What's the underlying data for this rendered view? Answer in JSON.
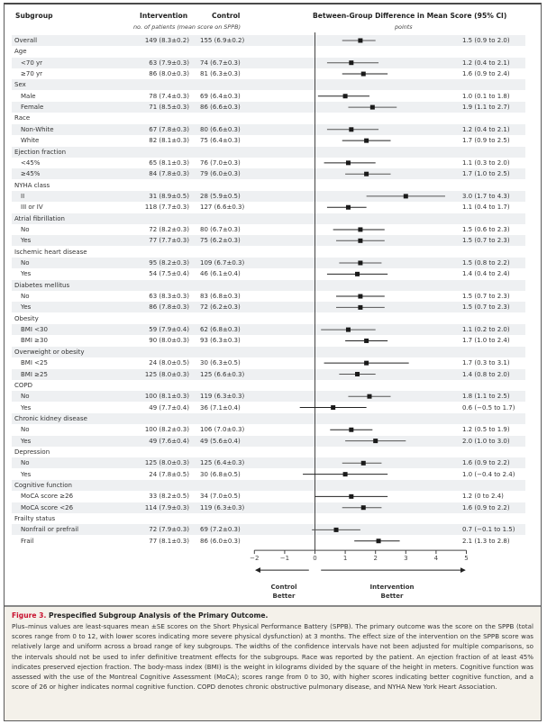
{
  "headers": {
    "subgroup": "Subgroup",
    "intervention": "Intervention",
    "control": "Control",
    "counts_note": "no. of patients (mean score on SPPB)",
    "difference": "Between-Group Difference in Mean Score (95% CI)",
    "units": "points"
  },
  "chart_data": {
    "type": "forest",
    "title": "Prespecified Subgroup Analysis of the Primary Outcome",
    "xlabel": "Between-Group Difference in Mean Score (95% CI), points",
    "xlim": [
      -2,
      5
    ],
    "xticks": [
      "−2",
      "−1",
      "0",
      "1",
      "2",
      "3",
      "4",
      "5"
    ],
    "reference_line": 0,
    "direction_labels": {
      "left": "Control Better",
      "right": "Intervention Better"
    },
    "rows": [
      {
        "label": "Overall",
        "kind": "item",
        "indent": false,
        "intervention": "149 (8.3±0.2)",
        "control": "155 (6.9±0.2)",
        "est": 1.5,
        "lo": 0.9,
        "hi": 2.0,
        "text": "1.5 (0.9 to 2.0)"
      },
      {
        "label": "Age",
        "kind": "group"
      },
      {
        "label": "<70 yr",
        "kind": "item",
        "indent": true,
        "intervention": "63 (7.9±0.3)",
        "control": "74 (6.7±0.3)",
        "est": 1.2,
        "lo": 0.4,
        "hi": 2.1,
        "text": "1.2 (0.4 to 2.1)"
      },
      {
        "label": "≥70 yr",
        "kind": "item",
        "indent": true,
        "intervention": "86 (8.0±0.3)",
        "control": "81 (6.3±0.3)",
        "est": 1.6,
        "lo": 0.9,
        "hi": 2.4,
        "text": "1.6 (0.9 to 2.4)"
      },
      {
        "label": "Sex",
        "kind": "group"
      },
      {
        "label": "Male",
        "kind": "item",
        "indent": true,
        "intervention": "78 (7.4±0.3)",
        "control": "69 (6.4±0.3)",
        "est": 1.0,
        "lo": 0.1,
        "hi": 1.8,
        "text": "1.0 (0.1 to 1.8)"
      },
      {
        "label": "Female",
        "kind": "item",
        "indent": true,
        "intervention": "71 (8.5±0.3)",
        "control": "86 (6.6±0.3)",
        "est": 1.9,
        "lo": 1.1,
        "hi": 2.7,
        "text": "1.9 (1.1 to 2.7)"
      },
      {
        "label": "Race",
        "kind": "group"
      },
      {
        "label": "Non-White",
        "kind": "item",
        "indent": true,
        "intervention": "67 (7.8±0.3)",
        "control": "80 (6.6±0.3)",
        "est": 1.2,
        "lo": 0.4,
        "hi": 2.1,
        "text": "1.2 (0.4 to 2.1)"
      },
      {
        "label": "White",
        "kind": "item",
        "indent": true,
        "intervention": "82 (8.1±0.3)",
        "control": "75 (6.4±0.3)",
        "est": 1.7,
        "lo": 0.9,
        "hi": 2.5,
        "text": "1.7 (0.9 to 2.5)"
      },
      {
        "label": "Ejection fraction",
        "kind": "group"
      },
      {
        "label": "<45%",
        "kind": "item",
        "indent": true,
        "intervention": "65 (8.1±0.3)",
        "control": "76 (7.0±0.3)",
        "est": 1.1,
        "lo": 0.3,
        "hi": 2.0,
        "text": "1.1 (0.3 to 2.0)"
      },
      {
        "label": "≥45%",
        "kind": "item",
        "indent": true,
        "intervention": "84 (7.8±0.3)",
        "control": "79 (6.0±0.3)",
        "est": 1.7,
        "lo": 1.0,
        "hi": 2.5,
        "text": "1.7 (1.0 to 2.5)"
      },
      {
        "label": "NYHA class",
        "kind": "group"
      },
      {
        "label": "II",
        "kind": "item",
        "indent": true,
        "intervention": "31 (8.9±0.5)",
        "control": "28 (5.9±0.5)",
        "est": 3.0,
        "lo": 1.7,
        "hi": 4.3,
        "text": "3.0 (1.7 to 4.3)"
      },
      {
        "label": "III or IV",
        "kind": "item",
        "indent": true,
        "intervention": "118 (7.7±0.3)",
        "control": "127 (6.6±0.3)",
        "est": 1.1,
        "lo": 0.4,
        "hi": 1.7,
        "text": "1.1 (0.4 to 1.7)"
      },
      {
        "label": "Atrial fibrillation",
        "kind": "group"
      },
      {
        "label": "No",
        "kind": "item",
        "indent": true,
        "intervention": "72 (8.2±0.3)",
        "control": "80 (6.7±0.3)",
        "est": 1.5,
        "lo": 0.6,
        "hi": 2.3,
        "text": "1.5 (0.6 to 2.3)"
      },
      {
        "label": "Yes",
        "kind": "item",
        "indent": true,
        "intervention": "77 (7.7±0.3)",
        "control": "75 (6.2±0.3)",
        "est": 1.5,
        "lo": 0.7,
        "hi": 2.3,
        "text": "1.5 (0.7 to 2.3)"
      },
      {
        "label": "Ischemic heart disease",
        "kind": "group"
      },
      {
        "label": "No",
        "kind": "item",
        "indent": true,
        "intervention": "95 (8.2±0.3)",
        "control": "109 (6.7±0.3)",
        "est": 1.5,
        "lo": 0.8,
        "hi": 2.2,
        "text": "1.5 (0.8 to 2.2)"
      },
      {
        "label": "Yes",
        "kind": "item",
        "indent": true,
        "intervention": "54 (7.5±0.4)",
        "control": "46 (6.1±0.4)",
        "est": 1.4,
        "lo": 0.4,
        "hi": 2.4,
        "text": "1.4 (0.4 to 2.4)"
      },
      {
        "label": "Diabetes mellitus",
        "kind": "group"
      },
      {
        "label": "No",
        "kind": "item",
        "indent": true,
        "intervention": "63 (8.3±0.3)",
        "control": "83 (6.8±0.3)",
        "est": 1.5,
        "lo": 0.7,
        "hi": 2.3,
        "text": "1.5 (0.7 to 2.3)"
      },
      {
        "label": "Yes",
        "kind": "item",
        "indent": true,
        "intervention": "86 (7.8±0.3)",
        "control": "72 (6.2±0.3)",
        "est": 1.5,
        "lo": 0.7,
        "hi": 2.3,
        "text": "1.5 (0.7 to 2.3)"
      },
      {
        "label": "Obesity",
        "kind": "group"
      },
      {
        "label": "BMI <30",
        "kind": "item",
        "indent": true,
        "intervention": "59 (7.9±0.4)",
        "control": "62 (6.8±0.3)",
        "est": 1.1,
        "lo": 0.2,
        "hi": 2.0,
        "text": "1.1 (0.2 to 2.0)"
      },
      {
        "label": "BMI ≥30",
        "kind": "item",
        "indent": true,
        "intervention": "90 (8.0±0.3)",
        "control": "93 (6.3±0.3)",
        "est": 1.7,
        "lo": 1.0,
        "hi": 2.4,
        "text": "1.7 (1.0 to 2.4)"
      },
      {
        "label": "Overweight or obesity",
        "kind": "group"
      },
      {
        "label": "BMI <25",
        "kind": "item",
        "indent": true,
        "intervention": "24 (8.0±0.5)",
        "control": "30 (6.3±0.5)",
        "est": 1.7,
        "lo": 0.3,
        "hi": 3.1,
        "text": "1.7 (0.3 to 3.1)"
      },
      {
        "label": "BMI ≥25",
        "kind": "item",
        "indent": true,
        "intervention": "125 (8.0±0.3)",
        "control": "125 (6.6±0.3)",
        "est": 1.4,
        "lo": 0.8,
        "hi": 2.0,
        "text": "1.4 (0.8 to 2.0)"
      },
      {
        "label": "COPD",
        "kind": "group"
      },
      {
        "label": "No",
        "kind": "item",
        "indent": true,
        "intervention": "100 (8.1±0.3)",
        "control": "119 (6.3±0.3)",
        "est": 1.8,
        "lo": 1.1,
        "hi": 2.5,
        "text": "1.8 (1.1 to 2.5)"
      },
      {
        "label": "Yes",
        "kind": "item",
        "indent": true,
        "intervention": "49 (7.7±0.4)",
        "control": "36 (7.1±0.4)",
        "est": 0.6,
        "lo": -0.5,
        "hi": 1.7,
        "text": "0.6 (−0.5 to 1.7)"
      },
      {
        "label": "Chronic kidney disease",
        "kind": "group"
      },
      {
        "label": "No",
        "kind": "item",
        "indent": true,
        "intervention": "100 (8.2±0.3)",
        "control": "106 (7.0±0.3)",
        "est": 1.2,
        "lo": 0.5,
        "hi": 1.9,
        "text": "1.2 (0.5 to 1.9)"
      },
      {
        "label": "Yes",
        "kind": "item",
        "indent": true,
        "intervention": "49 (7.6±0.4)",
        "control": "49 (5.6±0.4)",
        "est": 2.0,
        "lo": 1.0,
        "hi": 3.0,
        "text": "2.0 (1.0 to 3.0)"
      },
      {
        "label": "Depression",
        "kind": "group"
      },
      {
        "label": "No",
        "kind": "item",
        "indent": true,
        "intervention": "125 (8.0±0.3)",
        "control": "125 (6.4±0.3)",
        "est": 1.6,
        "lo": 0.9,
        "hi": 2.2,
        "text": "1.6 (0.9 to 2.2)"
      },
      {
        "label": "Yes",
        "kind": "item",
        "indent": true,
        "intervention": "24 (7.8±0.5)",
        "control": "30 (6.8±0.5)",
        "est": 1.0,
        "lo": -0.4,
        "hi": 2.4,
        "text": "1.0 (−0.4 to 2.4)"
      },
      {
        "label": "Cognitive function",
        "kind": "group"
      },
      {
        "label": "MoCA score ≥26",
        "kind": "item",
        "indent": true,
        "intervention": "33 (8.2±0.5)",
        "control": "34 (7.0±0.5)",
        "est": 1.2,
        "lo": 0.0,
        "hi": 2.4,
        "text": "1.2 (0 to 2.4)"
      },
      {
        "label": "MoCA score <26",
        "kind": "item",
        "indent": true,
        "intervention": "114 (7.9±0.3)",
        "control": "119 (6.3±0.3)",
        "est": 1.6,
        "lo": 0.9,
        "hi": 2.2,
        "text": "1.6 (0.9 to 2.2)"
      },
      {
        "label": "Frailty status",
        "kind": "group"
      },
      {
        "label": "Nonfrail or prefrail",
        "kind": "item",
        "indent": true,
        "intervention": "72 (7.9±0.3)",
        "control": "69 (7.2±0.3)",
        "est": 0.7,
        "lo": -0.1,
        "hi": 1.5,
        "text": "0.7 (−0.1 to 1.5)"
      },
      {
        "label": "Frail",
        "kind": "item",
        "indent": true,
        "intervention": "77 (8.1±0.3)",
        "control": "86 (6.0±0.3)",
        "est": 2.1,
        "lo": 1.3,
        "hi": 2.8,
        "text": "2.1 (1.3 to 2.8)"
      }
    ]
  },
  "direction": {
    "control": "Control\nBetter",
    "intervention": "Intervention\nBetter"
  },
  "caption": {
    "figure_label": "Figure 3.",
    "title": "Prespecified Subgroup Analysis of the Primary Outcome.",
    "body": "Plus–minus values are least-squares mean ±SE scores on the Short Physical Performance Battery (SPPB). The primary outcome was the score on the SPPB (total scores range from 0 to 12, with lower scores indicating more severe physical dysfunction) at 3 months. The effect size of the intervention on the SPPB score was relatively large and uniform across a broad range of key subgroups. The widths of the confidence intervals have not been adjusted for multiple comparisons, so the intervals should not be used to infer definitive treatment effects for the subgroups. Race was reported by the patient. An ejection fraction of at least 45% indicates preserved ejection fraction. The body-mass index (BMI) is the weight in kilograms divided by the square of the height in meters. Cognitive function was assessed with the use of the Montreal Cognitive Assessment (MoCA); scores range from 0 to 30, with higher scores indicating better cognitive function, and a score of 26 or higher indicates normal cognitive function. COPD denotes chronic obstructive pulmonary disease, and NYHA New York Heart Association."
  },
  "colors": {
    "figure_label": "#c8102e",
    "row_shade": "#eef0f2",
    "caption_bg": "#f4f1ea",
    "marker": "#1a1a1a"
  }
}
